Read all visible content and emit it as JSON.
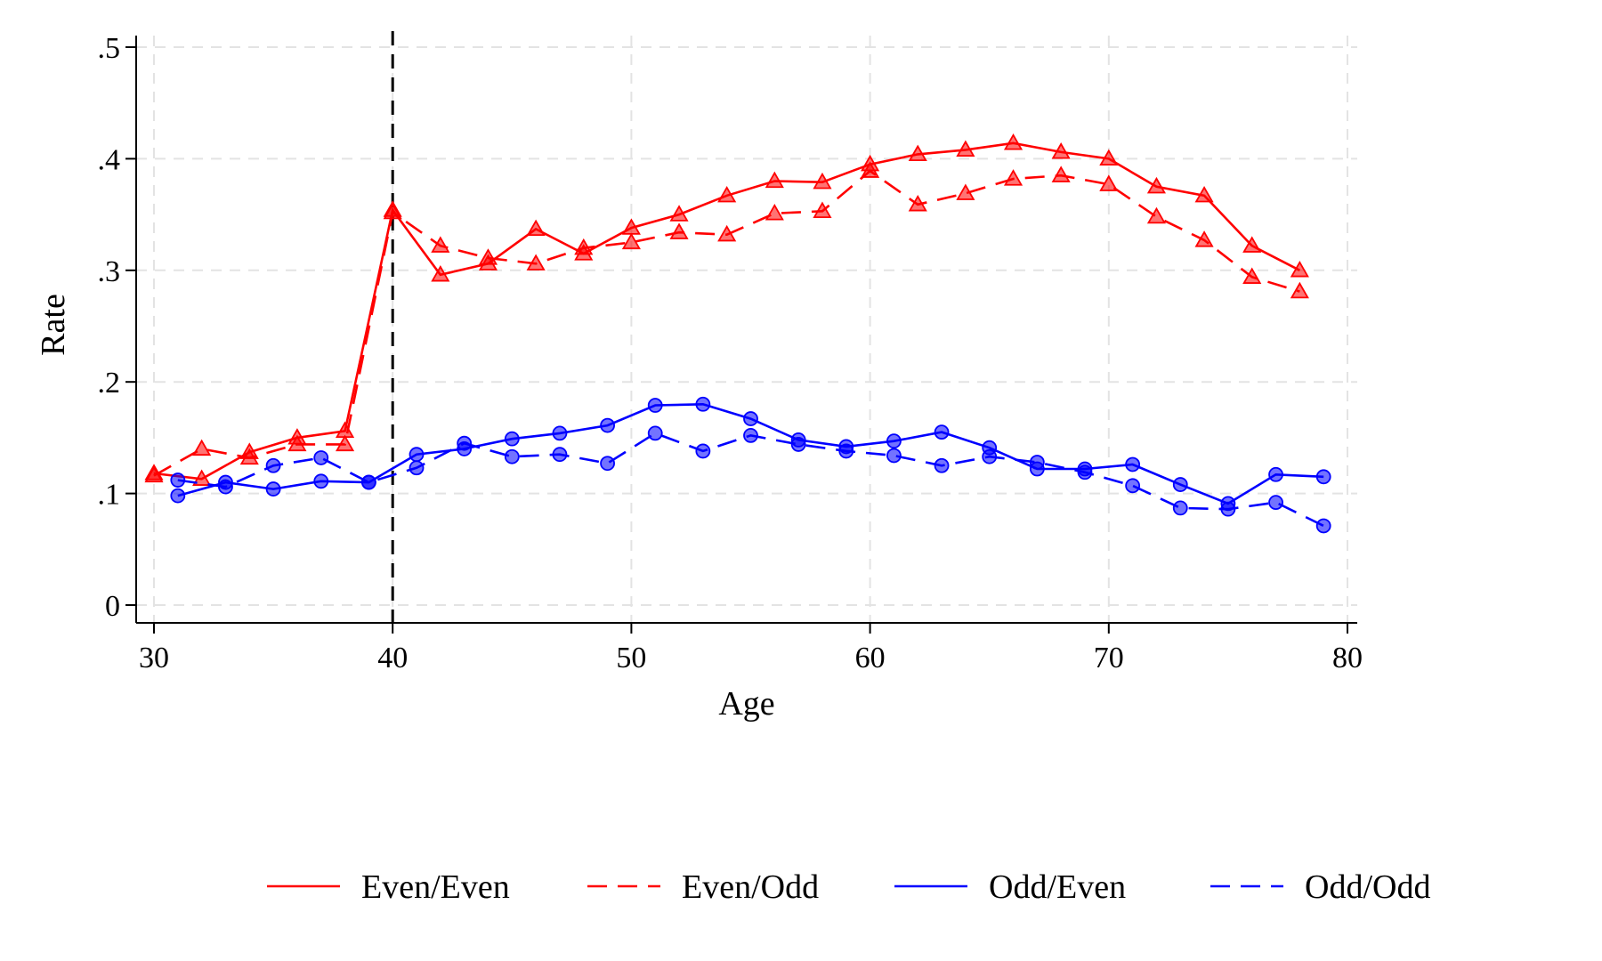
{
  "chart_data": {
    "type": "line",
    "xlabel": "Age",
    "ylabel": "Rate",
    "xlim": [
      30,
      80
    ],
    "ylim": [
      0,
      0.5
    ],
    "x_ticks": [
      30,
      40,
      50,
      60,
      70,
      80
    ],
    "x_tick_labels": [
      "30",
      "40",
      "50",
      "60",
      "70",
      "80"
    ],
    "y_ticks": [
      0,
      0.1,
      0.2,
      0.3,
      0.4,
      0.5
    ],
    "y_tick_labels": [
      "0",
      ".1",
      ".2",
      ".3",
      ".4",
      ".5"
    ],
    "grid": true,
    "reference_line": {
      "x": 40,
      "style": "dashed",
      "color": "#000000"
    },
    "legend_position": "bottom",
    "series": [
      {
        "name": "Even/Even",
        "color": "#ff0000",
        "line_style": "solid",
        "marker": "triangle",
        "x": [
          30,
          32,
          34,
          36,
          38,
          40,
          42,
          44,
          46,
          48,
          50,
          52,
          54,
          56,
          58,
          60,
          62,
          64,
          66,
          68,
          70,
          72,
          74,
          76,
          78
        ],
        "y": [
          0.118,
          0.113,
          0.137,
          0.15,
          0.156,
          0.354,
          0.296,
          0.306,
          0.337,
          0.315,
          0.338,
          0.35,
          0.367,
          0.38,
          0.379,
          0.395,
          0.404,
          0.408,
          0.414,
          0.406,
          0.4,
          0.375,
          0.367,
          0.322,
          0.3
        ]
      },
      {
        "name": "Even/Odd",
        "color": "#ff0000",
        "line_style": "dashed",
        "marker": "triangle",
        "x": [
          30,
          32,
          34,
          36,
          38,
          40,
          42,
          44,
          46,
          48,
          50,
          52,
          54,
          56,
          58,
          60,
          62,
          64,
          66,
          68,
          70,
          72,
          74,
          76,
          78
        ],
        "y": [
          0.116,
          0.14,
          0.132,
          0.144,
          0.144,
          0.352,
          0.322,
          0.311,
          0.306,
          0.32,
          0.325,
          0.334,
          0.332,
          0.351,
          0.353,
          0.389,
          0.359,
          0.369,
          0.382,
          0.385,
          0.377,
          0.348,
          0.327,
          0.294,
          0.281
        ]
      },
      {
        "name": "Odd/Even",
        "color": "#0000ff",
        "line_style": "solid",
        "marker": "circle",
        "x": [
          31,
          33,
          35,
          37,
          39,
          41,
          43,
          45,
          47,
          49,
          51,
          53,
          55,
          57,
          59,
          61,
          63,
          65,
          67,
          69,
          71,
          73,
          75,
          77,
          79
        ],
        "y": [
          0.098,
          0.11,
          0.104,
          0.111,
          0.11,
          0.135,
          0.14,
          0.149,
          0.154,
          0.161,
          0.179,
          0.18,
          0.167,
          0.148,
          0.142,
          0.147,
          0.155,
          0.141,
          0.122,
          0.122,
          0.126,
          0.108,
          0.091,
          0.117,
          0.115
        ]
      },
      {
        "name": "Odd/Odd",
        "color": "#0000ff",
        "line_style": "dashed",
        "marker": "circle",
        "x": [
          31,
          33,
          35,
          37,
          39,
          41,
          43,
          45,
          47,
          49,
          51,
          53,
          55,
          57,
          59,
          61,
          63,
          65,
          67,
          69,
          71,
          73,
          75,
          77,
          79
        ],
        "y": [
          0.112,
          0.106,
          0.125,
          0.132,
          0.11,
          0.123,
          0.145,
          0.133,
          0.135,
          0.127,
          0.154,
          0.138,
          0.152,
          0.144,
          0.138,
          0.134,
          0.125,
          0.133,
          0.128,
          0.119,
          0.107,
          0.087,
          0.086,
          0.092,
          0.071
        ]
      }
    ]
  }
}
